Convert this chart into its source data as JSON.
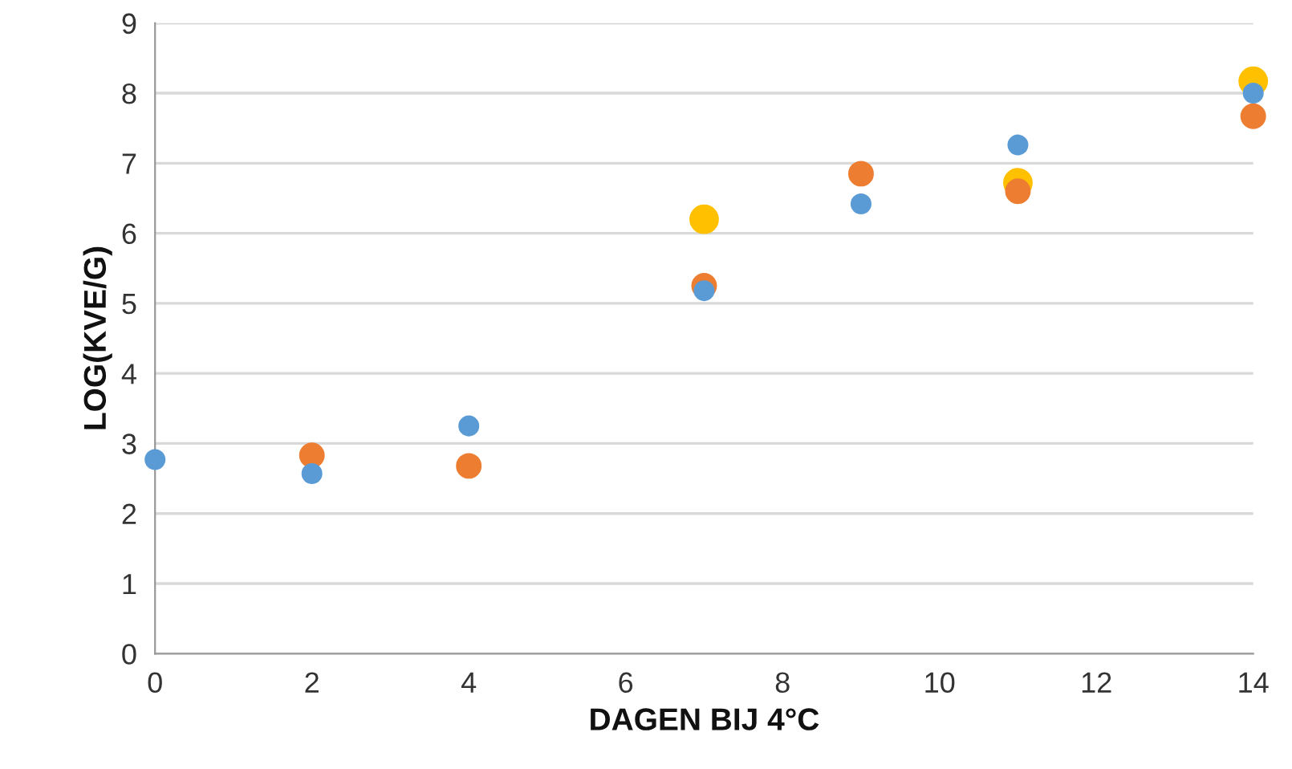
{
  "chart_data": {
    "type": "scatter",
    "xlabel": "DAGEN BIJ 4°C",
    "ylabel": "LOG(KVE/G)",
    "x": [
      0,
      2,
      4,
      7,
      9,
      11,
      14
    ],
    "series": [
      {
        "color": "#ffc000",
        "values": [
          null,
          null,
          null,
          6.2,
          null,
          6.72,
          8.17
        ]
      },
      {
        "color": "#ed7d31",
        "values": [
          null,
          2.83,
          2.68,
          5.25,
          6.85,
          6.6,
          7.67
        ]
      },
      {
        "color": "#5b9bd5",
        "values": [
          2.77,
          2.57,
          3.25,
          5.18,
          6.42,
          7.26,
          8.0
        ]
      }
    ],
    "xlim": [
      0,
      14
    ],
    "ylim": [
      0,
      9
    ],
    "xticks": [
      0,
      2,
      4,
      6,
      8,
      10,
      12,
      14
    ],
    "yticks": [
      0,
      1,
      2,
      3,
      4,
      5,
      6,
      7,
      8,
      9
    ],
    "grid": "y",
    "marker": "circle"
  }
}
